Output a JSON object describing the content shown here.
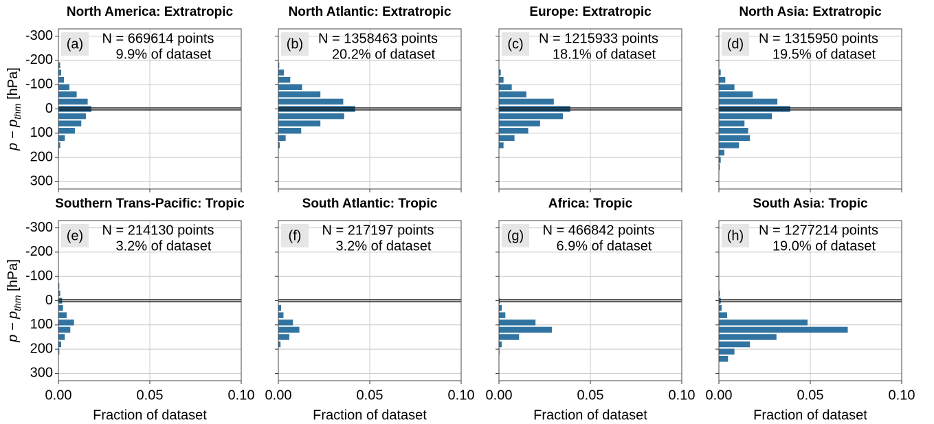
{
  "chart_data": [
    {
      "type": "barh",
      "title": "North America: Extratropic",
      "panel_label": "(a)",
      "annotations": [
        "N = 669614 points",
        "9.9% of dataset"
      ],
      "color": "#3274a1",
      "grid": true,
      "y_inverted": true,
      "hline": 0,
      "ylabel": [
        "p − p",
        "thm",
        " [hPa]"
      ],
      "y": [
        -180,
        -150,
        -120,
        -90,
        -60,
        -30,
        0,
        30,
        60,
        90,
        120,
        150,
        180
      ],
      "values": [
        0.001,
        0.0015,
        0.003,
        0.006,
        0.01,
        0.016,
        0.018,
        0.015,
        0.0125,
        0.009,
        0.0035,
        0.001,
        0.0003
      ],
      "xlim": [
        0,
        0.1
      ],
      "xticks": [
        0,
        0.05,
        0.1
      ],
      "ylim": [
        -330,
        330
      ],
      "yticks": [
        -300,
        -200,
        -100,
        0,
        100,
        200,
        300
      ]
    },
    {
      "type": "barh",
      "title": "North Atlantic: Extratropic",
      "panel_label": "(b)",
      "annotations": [
        "N = 1358463 points",
        "20.2% of dataset"
      ],
      "color": "#3274a1",
      "grid": true,
      "y_inverted": true,
      "hline": 0,
      "y": [
        -180,
        -150,
        -120,
        -90,
        -60,
        -30,
        0,
        30,
        60,
        90,
        120,
        150
      ],
      "values": [
        0.0005,
        0.003,
        0.0065,
        0.013,
        0.023,
        0.0355,
        0.042,
        0.036,
        0.023,
        0.0125,
        0.004,
        0.0008
      ],
      "xlim": [
        0,
        0.1
      ],
      "xticks": [
        0,
        0.05,
        0.1
      ],
      "ylim": [
        -330,
        330
      ],
      "yticks": [
        -300,
        -200,
        -100,
        0,
        100,
        200,
        300
      ]
    },
    {
      "type": "barh",
      "title": "Europe: Extratropic",
      "panel_label": "(c)",
      "annotations": [
        "N = 1215933 points",
        "18.1% of dataset"
      ],
      "color": "#3274a1",
      "grid": true,
      "y_inverted": true,
      "hline": 0,
      "y": [
        -150,
        -120,
        -90,
        -60,
        -30,
        0,
        30,
        60,
        90,
        120,
        150
      ],
      "values": [
        0.001,
        0.0025,
        0.007,
        0.015,
        0.03,
        0.039,
        0.035,
        0.0225,
        0.016,
        0.0085,
        0.0025
      ],
      "xlim": [
        0,
        0.1
      ],
      "xticks": [
        0,
        0.05,
        0.1
      ],
      "ylim": [
        -330,
        330
      ],
      "yticks": [
        -300,
        -200,
        -100,
        0,
        100,
        200,
        300
      ]
    },
    {
      "type": "barh",
      "title": "North Asia: Extratropic",
      "panel_label": "(d)",
      "annotations": [
        "N = 1315950 points",
        "19.5% of dataset"
      ],
      "color": "#3274a1",
      "grid": true,
      "y_inverted": true,
      "hline": 0,
      "y": [
        -150,
        -120,
        -90,
        -60,
        -30,
        0,
        30,
        60,
        90,
        120,
        150,
        180,
        210,
        240
      ],
      "values": [
        0.001,
        0.0035,
        0.0085,
        0.0185,
        0.032,
        0.039,
        0.029,
        0.014,
        0.016,
        0.017,
        0.011,
        0.003,
        0.001,
        0.0005
      ],
      "xlim": [
        0,
        0.1
      ],
      "xticks": [
        0,
        0.05,
        0.1
      ],
      "ylim": [
        -330,
        330
      ],
      "yticks": [
        -300,
        -200,
        -100,
        0,
        100,
        200,
        300
      ]
    },
    {
      "type": "barh",
      "title": "Southern Trans-Pacific: Tropic",
      "panel_label": "(e)",
      "annotations": [
        "N = 214130 points",
        "3.2% of dataset"
      ],
      "color": "#3274a1",
      "grid": true,
      "y_inverted": true,
      "hline": 0,
      "ylabel": [
        "p − p",
        "thm",
        " [hPa]"
      ],
      "xlabel": "Fraction of dataset",
      "y": [
        -60,
        -30,
        0,
        30,
        60,
        90,
        120,
        150,
        180,
        210
      ],
      "values": [
        0.0005,
        0.001,
        0.002,
        0.0025,
        0.0045,
        0.0085,
        0.0065,
        0.0035,
        0.0015,
        0.0005
      ],
      "xlim": [
        0,
        0.1
      ],
      "xticks": [
        {
          "value": 0,
          "label": "0.00"
        },
        {
          "value": 0.05,
          "label": "0.05"
        },
        {
          "value": 0.1,
          "label": "0.10"
        }
      ],
      "ylim": [
        -330,
        330
      ],
      "yticks": [
        -300,
        -200,
        -100,
        0,
        100,
        200,
        300
      ]
    },
    {
      "type": "barh",
      "title": "South Atlantic: Tropic",
      "panel_label": "(f)",
      "annotations": [
        "N = 217197 points",
        "3.2% of dataset"
      ],
      "color": "#3274a1",
      "grid": true,
      "y_inverted": true,
      "hline": 0,
      "xlabel": "Fraction of dataset",
      "y": [
        30,
        60,
        90,
        120,
        150,
        180
      ],
      "values": [
        0.0015,
        0.0028,
        0.008,
        0.0115,
        0.006,
        0.0012
      ],
      "xlim": [
        0,
        0.1
      ],
      "xticks": [
        {
          "value": 0,
          "label": "0.00"
        },
        {
          "value": 0.05,
          "label": "0.05"
        },
        {
          "value": 0.1,
          "label": "0.10"
        }
      ],
      "ylim": [
        -330,
        330
      ],
      "yticks": [
        -300,
        -200,
        -100,
        0,
        100,
        200,
        300
      ]
    },
    {
      "type": "barh",
      "title": "Africa: Tropic",
      "panel_label": "(g)",
      "annotations": [
        "N = 466842 points",
        "6.9% of dataset"
      ],
      "color": "#3274a1",
      "grid": true,
      "y_inverted": true,
      "hline": 0,
      "xlabel": "Fraction of dataset",
      "y": [
        0,
        30,
        60,
        90,
        120,
        150,
        180,
        210
      ],
      "values": [
        0.0005,
        0.0015,
        0.0035,
        0.02,
        0.029,
        0.011,
        0.0015,
        0.0003
      ],
      "xlim": [
        0,
        0.1
      ],
      "xticks": [
        {
          "value": 0,
          "label": "0.00"
        },
        {
          "value": 0.05,
          "label": "0.05"
        },
        {
          "value": 0.1,
          "label": "0.10"
        }
      ],
      "ylim": [
        -330,
        330
      ],
      "yticks": [
        -300,
        -200,
        -100,
        0,
        100,
        200,
        300
      ]
    },
    {
      "type": "barh",
      "title": "South Asia: Tropic",
      "panel_label": "(h)",
      "annotations": [
        "N = 1277214 points",
        "19.0% of dataset"
      ],
      "color": "#3274a1",
      "grid": true,
      "y_inverted": true,
      "hline": 0,
      "xlabel": "Fraction of dataset",
      "y": [
        -30,
        0,
        30,
        60,
        90,
        120,
        150,
        180,
        210,
        240
      ],
      "values": [
        0.0005,
        0.001,
        0.0015,
        0.0045,
        0.0485,
        0.0705,
        0.0315,
        0.017,
        0.0085,
        0.005
      ],
      "xlim": [
        0,
        0.1
      ],
      "xticks": [
        {
          "value": 0,
          "label": "0.00"
        },
        {
          "value": 0.05,
          "label": "0.05"
        },
        {
          "value": 0.1,
          "label": "0.10"
        }
      ],
      "ylim": [
        -330,
        330
      ],
      "yticks": [
        -300,
        -200,
        -100,
        0,
        100,
        200,
        300
      ]
    }
  ]
}
